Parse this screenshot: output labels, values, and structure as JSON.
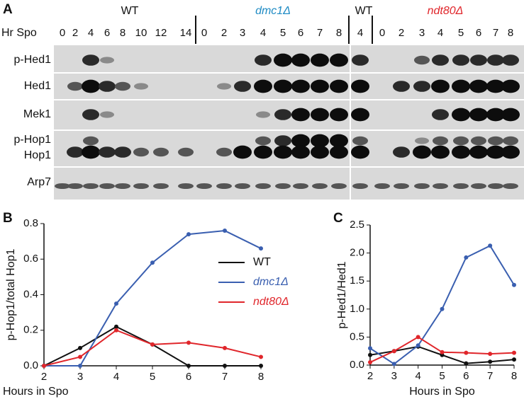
{
  "panel_a": {
    "label": "A",
    "hr_label": "Hr Spo",
    "groups": [
      {
        "name": "WT",
        "lanes": [
          0,
          2,
          4,
          6,
          8,
          10,
          12,
          14
        ]
      },
      {
        "name": "dmc1Δ",
        "color": "#1f8bc4",
        "lanes": [
          0,
          2,
          3,
          4,
          5,
          6,
          7,
          8
        ]
      },
      {
        "name": "WT",
        "lanes": [
          4
        ]
      },
      {
        "name": "ndt80Δ",
        "color": "#e0262b",
        "lanes": [
          0,
          2,
          3,
          4,
          5,
          6,
          7,
          8
        ]
      }
    ],
    "rows": [
      "p-Hed1",
      "Hed1",
      "Mek1",
      "p-Hop1",
      "Hop1",
      "Arp7"
    ]
  },
  "chart_data": [
    {
      "type": "line",
      "label": "B",
      "ylabel": "p-Hop1/total Hop1",
      "xlabel": "Hours in Spo",
      "x": [
        2,
        3,
        4,
        5,
        6,
        7,
        8
      ],
      "xlim": [
        2,
        8
      ],
      "xticks": [
        2,
        3,
        4,
        5,
        6,
        7,
        8
      ],
      "ylim": [
        0,
        0.8
      ],
      "yticks": [
        {
          "value": 0,
          "label": "0.0"
        },
        0.2,
        0.4,
        0.6,
        0.8
      ],
      "series": [
        {
          "name": "WT",
          "color": "#111111",
          "values": [
            0,
            0.1,
            0.22,
            0.12,
            0,
            0,
            0
          ]
        },
        {
          "name": "dmc1Δ",
          "color": "#3a5fb0",
          "values": [
            0,
            0,
            0.35,
            0.58,
            0.74,
            0.76,
            0.66
          ]
        },
        {
          "name": "ndt80Δ",
          "color": "#e0262b",
          "values": [
            0,
            0.05,
            0.2,
            0.12,
            0.13,
            0.1,
            0.05
          ]
        }
      ]
    },
    {
      "type": "line",
      "label": "C",
      "ylabel": "p-Hed1/Hed1",
      "xlabel": "Hours in Spo",
      "x": [
        2,
        3,
        4,
        5,
        6,
        7,
        8
      ],
      "xlim": [
        2,
        8
      ],
      "xticks": [
        2,
        3,
        4,
        5,
        6,
        7,
        8
      ],
      "ylim": [
        0,
        2.5
      ],
      "yticks": [
        {
          "value": 0,
          "label": "0.0"
        },
        0.5,
        {
          "value": 1,
          "label": "1.0"
        },
        1.5,
        {
          "value": 2,
          "label": "2.0"
        },
        2.5
      ],
      "series": [
        {
          "color": "#111111",
          "values": [
            0.18,
            0.25,
            0.33,
            0.18,
            0.03,
            0.06,
            0.1
          ]
        },
        {
          "color": "#3a5fb0",
          "values": [
            0.3,
            0.02,
            0.35,
            1.0,
            1.92,
            2.13,
            1.43
          ]
        },
        {
          "color": "#e0262b",
          "values": [
            0.05,
            0.25,
            0.5,
            0.23,
            0.22,
            0.2,
            0.22
          ]
        }
      ]
    }
  ]
}
